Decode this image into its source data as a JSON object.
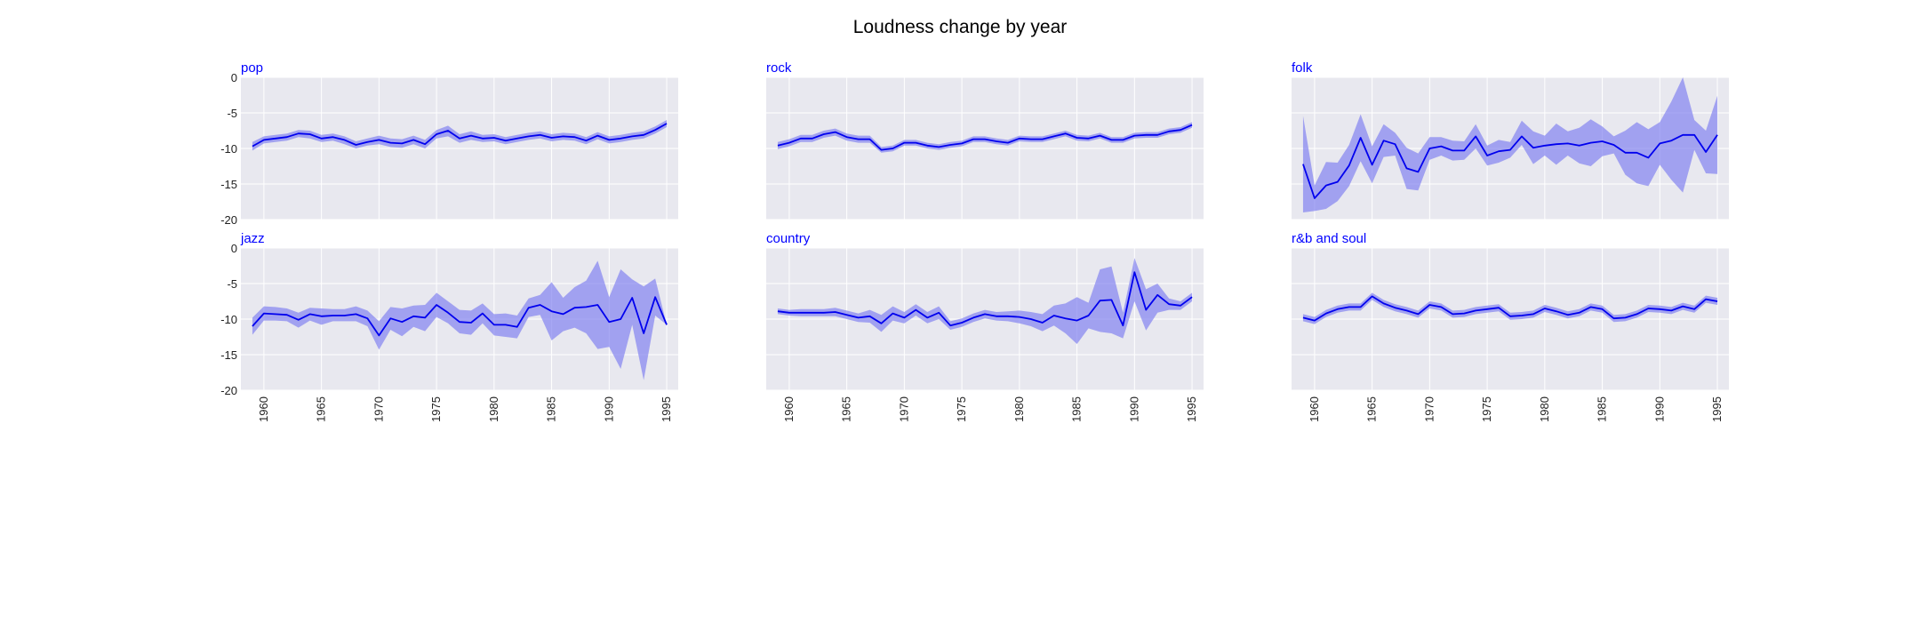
{
  "chart_data": {
    "type": "line",
    "title": "Loudness change by year",
    "xlabel": "",
    "ylabel": "",
    "grid": true,
    "xlim": [
      1958,
      1996
    ],
    "ylim": [
      -20,
      0
    ],
    "x_ticks": [
      1960,
      1965,
      1970,
      1975,
      1980,
      1985,
      1990,
      1995
    ],
    "y_ticks": [
      0,
      -5,
      -10,
      -15,
      -20
    ],
    "x": [
      1959,
      1960,
      1961,
      1962,
      1963,
      1964,
      1965,
      1966,
      1967,
      1968,
      1969,
      1970,
      1971,
      1972,
      1973,
      1974,
      1975,
      1976,
      1977,
      1978,
      1979,
      1980,
      1981,
      1982,
      1983,
      1984,
      1985,
      1986,
      1987,
      1988,
      1989,
      1990,
      1991,
      1992,
      1993,
      1994,
      1995
    ],
    "colors": {
      "line": "#0000ee",
      "band": "#7b7bf0",
      "panel_bg": "#e8e8ef",
      "grid": "#ffffff",
      "label": "#0000ff"
    },
    "panels": [
      {
        "name": "pop",
        "mean": [
          -9.7,
          -8.8,
          -8.6,
          -8.4,
          -7.9,
          -8.0,
          -8.6,
          -8.4,
          -8.8,
          -9.5,
          -9.1,
          -8.8,
          -9.2,
          -9.3,
          -8.8,
          -9.4,
          -8.0,
          -7.5,
          -8.6,
          -8.2,
          -8.6,
          -8.5,
          -8.9,
          -8.6,
          -8.3,
          -8.1,
          -8.5,
          -8.3,
          -8.4,
          -8.9,
          -8.2,
          -8.8,
          -8.6,
          -8.3,
          -8.1,
          -7.4,
          -6.5
        ],
        "lower": [
          -10.3,
          -9.3,
          -9.1,
          -8.9,
          -8.4,
          -8.6,
          -9.1,
          -8.9,
          -9.4,
          -10.0,
          -9.6,
          -9.4,
          -9.8,
          -9.9,
          -9.4,
          -10.0,
          -8.6,
          -8.3,
          -9.2,
          -8.8,
          -9.1,
          -9.0,
          -9.4,
          -9.1,
          -8.8,
          -8.6,
          -9.0,
          -8.8,
          -8.9,
          -9.4,
          -8.7,
          -9.3,
          -9.1,
          -8.8,
          -8.6,
          -7.9,
          -7.0
        ],
        "upper": [
          -9.1,
          -8.3,
          -8.1,
          -7.9,
          -7.4,
          -7.5,
          -8.1,
          -7.9,
          -8.3,
          -9.0,
          -8.6,
          -8.2,
          -8.6,
          -8.7,
          -8.2,
          -8.8,
          -7.4,
          -6.8,
          -8.0,
          -7.6,
          -8.1,
          -8.0,
          -8.4,
          -8.1,
          -7.8,
          -7.6,
          -8.0,
          -7.8,
          -7.9,
          -8.4,
          -7.7,
          -8.3,
          -8.1,
          -7.8,
          -7.6,
          -6.9,
          -6.0
        ]
      },
      {
        "name": "rock",
        "mean": [
          -9.6,
          -9.2,
          -8.6,
          -8.6,
          -8.0,
          -7.7,
          -8.4,
          -8.7,
          -8.7,
          -10.2,
          -10.0,
          -9.2,
          -9.2,
          -9.6,
          -9.8,
          -9.5,
          -9.3,
          -8.7,
          -8.7,
          -9.0,
          -9.2,
          -8.6,
          -8.7,
          -8.7,
          -8.3,
          -7.9,
          -8.5,
          -8.6,
          -8.2,
          -8.8,
          -8.8,
          -8.2,
          -8.1,
          -8.1,
          -7.6,
          -7.4,
          -6.7
        ],
        "lower": [
          -10.1,
          -9.7,
          -9.1,
          -9.1,
          -8.5,
          -8.2,
          -8.9,
          -9.2,
          -9.2,
          -10.6,
          -10.4,
          -9.6,
          -9.6,
          -10.0,
          -10.2,
          -9.9,
          -9.7,
          -9.1,
          -9.1,
          -9.4,
          -9.6,
          -9.0,
          -9.1,
          -9.1,
          -8.7,
          -8.3,
          -8.9,
          -9.0,
          -8.6,
          -9.2,
          -9.2,
          -8.6,
          -8.5,
          -8.5,
          -8.0,
          -7.8,
          -7.1
        ],
        "upper": [
          -9.1,
          -8.7,
          -8.1,
          -8.1,
          -7.5,
          -7.2,
          -7.9,
          -8.2,
          -8.2,
          -9.8,
          -9.6,
          -8.8,
          -8.8,
          -9.2,
          -9.4,
          -9.1,
          -8.9,
          -8.3,
          -8.3,
          -8.6,
          -8.8,
          -8.2,
          -8.3,
          -8.3,
          -7.9,
          -7.5,
          -8.1,
          -8.2,
          -7.8,
          -8.4,
          -8.4,
          -7.8,
          -7.7,
          -7.7,
          -7.2,
          -7.0,
          -6.3
        ]
      },
      {
        "name": "folk",
        "mean": [
          -12.2,
          -17.0,
          -15.2,
          -14.7,
          -12.4,
          -8.5,
          -12.3,
          -8.9,
          -9.4,
          -12.8,
          -13.3,
          -10.0,
          -9.7,
          -10.3,
          -10.3,
          -8.3,
          -11.0,
          -10.4,
          -10.2,
          -8.3,
          -9.9,
          -9.6,
          -9.4,
          -9.3,
          -9.6,
          -9.2,
          -9.0,
          -9.5,
          -10.6,
          -10.6,
          -11.3,
          -9.3,
          -8.9,
          -8.1,
          -8.1,
          -10.5,
          -8.1
        ],
        "lower": [
          -19.0,
          -18.8,
          -18.5,
          -17.4,
          -15.3,
          -11.8,
          -14.9,
          -11.2,
          -11.0,
          -15.7,
          -15.9,
          -11.6,
          -11.0,
          -11.7,
          -11.6,
          -10.0,
          -12.4,
          -12.0,
          -11.3,
          -9.5,
          -12.2,
          -11.0,
          -12.3,
          -11.0,
          -12.1,
          -12.5,
          -11.1,
          -10.7,
          -13.7,
          -14.9,
          -15.3,
          -12.3,
          -14.4,
          -16.2,
          -10.2,
          -13.5,
          -13.6
        ],
        "upper": [
          -5.4,
          -15.2,
          -11.9,
          -12.0,
          -9.5,
          -5.2,
          -9.7,
          -6.6,
          -7.8,
          -9.9,
          -10.7,
          -8.4,
          -8.4,
          -8.9,
          -9.0,
          -6.6,
          -9.6,
          -8.8,
          -9.1,
          -6.1,
          -7.6,
          -8.2,
          -6.5,
          -7.6,
          -7.1,
          -5.9,
          -6.9,
          -8.3,
          -7.5,
          -6.3,
          -7.3,
          -6.3,
          -3.4,
          0.0,
          -6.0,
          -7.5,
          -2.6
        ]
      },
      {
        "name": "jazz",
        "mean": [
          -11.0,
          -9.2,
          -9.3,
          -9.4,
          -10.1,
          -9.3,
          -9.6,
          -9.5,
          -9.5,
          -9.3,
          -9.9,
          -12.3,
          -9.9,
          -10.4,
          -9.6,
          -9.8,
          -8.0,
          -9.1,
          -10.4,
          -10.5,
          -9.2,
          -10.8,
          -10.8,
          -11.1,
          -8.4,
          -8.0,
          -8.9,
          -9.3,
          -8.4,
          -8.3,
          -8.0,
          -10.4,
          -10.0,
          -7.0,
          -12.0,
          -6.9,
          -10.8
        ],
        "lower": [
          -12.2,
          -10.2,
          -10.2,
          -10.3,
          -11.2,
          -10.2,
          -10.8,
          -10.3,
          -10.3,
          -10.3,
          -11.0,
          -14.3,
          -11.5,
          -12.4,
          -11.1,
          -11.7,
          -9.7,
          -10.6,
          -12.0,
          -12.2,
          -10.6,
          -12.3,
          -12.5,
          -12.7,
          -9.7,
          -9.4,
          -13.0,
          -11.7,
          -11.2,
          -12.0,
          -14.2,
          -13.9,
          -17.0,
          -10.8,
          -18.6,
          -9.5,
          -10.8
        ],
        "upper": [
          -9.8,
          -8.2,
          -8.3,
          -8.5,
          -9.1,
          -8.4,
          -8.5,
          -8.6,
          -8.6,
          -8.2,
          -8.8,
          -10.3,
          -8.3,
          -8.5,
          -8.1,
          -8.0,
          -6.3,
          -7.5,
          -8.7,
          -8.8,
          -7.8,
          -9.3,
          -9.2,
          -9.5,
          -7.1,
          -6.6,
          -4.8,
          -7.0,
          -5.5,
          -4.6,
          -1.8,
          -6.9,
          -3.0,
          -4.4,
          -5.4,
          -4.3,
          -10.8
        ]
      },
      {
        "name": "country",
        "mean": [
          -8.9,
          -9.1,
          -9.1,
          -9.1,
          -9.1,
          -9.0,
          -9.4,
          -9.8,
          -9.6,
          -10.6,
          -9.2,
          -9.8,
          -8.7,
          -9.8,
          -9.1,
          -10.9,
          -10.5,
          -9.8,
          -9.3,
          -9.6,
          -9.6,
          -9.7,
          -10.0,
          -10.5,
          -9.5,
          -9.9,
          -10.2,
          -9.5,
          -7.4,
          -7.3,
          -10.9,
          -3.4,
          -8.7,
          -6.6,
          -7.9,
          -8.1,
          -6.9
        ],
        "lower": [
          -9.3,
          -9.5,
          -9.6,
          -9.6,
          -9.6,
          -9.6,
          -10.0,
          -10.4,
          -10.5,
          -11.8,
          -10.2,
          -10.6,
          -9.5,
          -10.6,
          -10.0,
          -11.5,
          -11.1,
          -10.4,
          -9.9,
          -10.2,
          -10.3,
          -10.6,
          -11.0,
          -11.7,
          -10.9,
          -12.0,
          -13.5,
          -11.3,
          -11.8,
          -12.0,
          -12.7,
          -7.5,
          -11.6,
          -9.1,
          -8.7,
          -8.7,
          -7.5
        ],
        "upper": [
          -8.5,
          -8.7,
          -8.6,
          -8.6,
          -8.6,
          -8.4,
          -8.8,
          -9.2,
          -8.7,
          -9.4,
          -8.2,
          -9.0,
          -7.9,
          -9.0,
          -8.2,
          -10.3,
          -9.9,
          -9.2,
          -8.7,
          -9.0,
          -8.9,
          -8.8,
          -9.0,
          -9.3,
          -8.1,
          -7.8,
          -6.9,
          -7.7,
          -3.0,
          -2.6,
          -9.1,
          -1.4,
          -5.8,
          -5.0,
          -7.1,
          -7.5,
          -6.3
        ]
      },
      {
        "name": "r&b and soul",
        "mean": [
          -9.8,
          -10.2,
          -9.2,
          -8.6,
          -8.3,
          -8.3,
          -6.8,
          -7.8,
          -8.4,
          -8.8,
          -9.3,
          -8.0,
          -8.3,
          -9.3,
          -9.2,
          -8.8,
          -8.6,
          -8.4,
          -9.6,
          -9.5,
          -9.3,
          -8.5,
          -8.9,
          -9.4,
          -9.1,
          -8.3,
          -8.6,
          -9.9,
          -9.8,
          -9.3,
          -8.5,
          -8.6,
          -8.8,
          -8.2,
          -8.6,
          -7.2,
          -7.5
        ],
        "lower": [
          -10.3,
          -10.7,
          -9.7,
          -9.1,
          -8.8,
          -8.8,
          -7.3,
          -8.3,
          -8.9,
          -9.3,
          -9.8,
          -8.5,
          -8.8,
          -9.8,
          -9.7,
          -9.3,
          -9.1,
          -8.9,
          -10.1,
          -10.0,
          -9.8,
          -9.0,
          -9.4,
          -9.9,
          -9.6,
          -8.8,
          -9.1,
          -10.4,
          -10.3,
          -9.8,
          -9.0,
          -9.1,
          -9.3,
          -8.7,
          -9.1,
          -7.7,
          -8.0
        ],
        "upper": [
          -9.3,
          -9.7,
          -8.7,
          -8.1,
          -7.8,
          -7.8,
          -6.3,
          -7.3,
          -7.9,
          -8.3,
          -8.8,
          -7.5,
          -7.8,
          -8.8,
          -8.7,
          -8.3,
          -8.1,
          -7.9,
          -9.1,
          -9.0,
          -8.8,
          -8.0,
          -8.4,
          -8.9,
          -8.6,
          -7.8,
          -8.1,
          -9.4,
          -9.3,
          -8.8,
          -8.0,
          -8.1,
          -8.3,
          -7.7,
          -8.1,
          -6.7,
          -7.0
        ]
      }
    ]
  }
}
